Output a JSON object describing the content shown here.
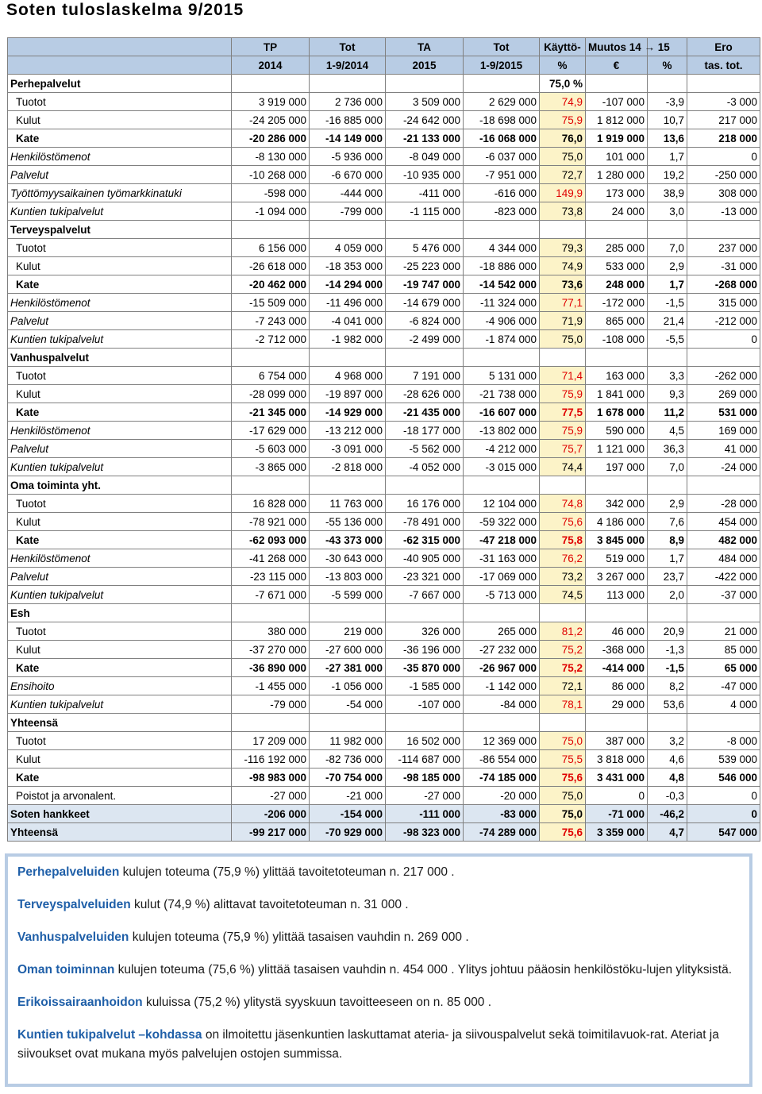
{
  "title": "Soten tuloslaskelma 9/2015",
  "header": {
    "row1": [
      "",
      "TP",
      "Tot",
      "TA",
      "Tot",
      "Käyttö-",
      "Muutos 14 → 15",
      "",
      "Ero"
    ],
    "row2": [
      "",
      "2014",
      "1-9/2014",
      "2015",
      "1-9/2015",
      "%",
      "€",
      "%",
      "tas. tot."
    ]
  },
  "rows": [
    {
      "label": "Perhepalvelut",
      "type": "section",
      "values": [
        "",
        "",
        "",
        "",
        "75,0 %",
        "",
        "",
        ""
      ]
    },
    {
      "label": "Tuotot",
      "type": "plain",
      "values": [
        "3 919 000",
        "2 736 000",
        "3 509 000",
        "2 629 000",
        "74,9",
        "-107 000",
        "-3,9",
        "-3 000"
      ],
      "red": true
    },
    {
      "label": "Kulut",
      "type": "plain",
      "values": [
        "-24 205 000",
        "-16 885 000",
        "-24 642 000",
        "-18 698 000",
        "75,9",
        "1 812 000",
        "10,7",
        "217 000"
      ],
      "red": true
    },
    {
      "label": "Kate",
      "type": "kate",
      "values": [
        "-20 286 000",
        "-14 149 000",
        "-21 133 000",
        "-16 068 000",
        "76,0",
        "1 919 000",
        "13,6",
        "218 000"
      ]
    },
    {
      "label": "Henkilöstömenot",
      "type": "italic",
      "values": [
        "-8 130 000",
        "-5 936 000",
        "-8 049 000",
        "-6 037 000",
        "75,0",
        "101 000",
        "1,7",
        "0"
      ]
    },
    {
      "label": "Palvelut",
      "type": "italic",
      "values": [
        "-10 268 000",
        "-6 670 000",
        "-10 935 000",
        "-7 951 000",
        "72,7",
        "1 280 000",
        "19,2",
        "-250 000"
      ]
    },
    {
      "label": "Työttömyysaikainen työmarkkinatuki",
      "type": "italic",
      "values": [
        "-598 000",
        "-444 000",
        "-411 000",
        "-616 000",
        "149,9",
        "173 000",
        "38,9",
        "308 000"
      ],
      "red": true
    },
    {
      "label": "Kuntien tukipalvelut",
      "type": "italic",
      "values": [
        "-1 094 000",
        "-799 000",
        "-1 115 000",
        "-823 000",
        "73,8",
        "24 000",
        "3,0",
        "-13 000"
      ]
    },
    {
      "label": "Terveyspalvelut",
      "type": "section",
      "values": [
        "",
        "",
        "",
        "",
        "",
        "",
        "",
        ""
      ]
    },
    {
      "label": "Tuotot",
      "type": "plain",
      "values": [
        "6 156 000",
        "4 059 000",
        "5 476 000",
        "4 344 000",
        "79,3",
        "285 000",
        "7,0",
        "237 000"
      ]
    },
    {
      "label": "Kulut",
      "type": "plain",
      "values": [
        "-26 618 000",
        "-18 353 000",
        "-25 223 000",
        "-18 886 000",
        "74,9",
        "533 000",
        "2,9",
        "-31 000"
      ]
    },
    {
      "label": "Kate",
      "type": "kate",
      "values": [
        "-20 462 000",
        "-14 294 000",
        "-19 747 000",
        "-14 542 000",
        "73,6",
        "248 000",
        "1,7",
        "-268 000"
      ]
    },
    {
      "label": "Henkilöstömenot",
      "type": "italic",
      "values": [
        "-15 509 000",
        "-11 496 000",
        "-14 679 000",
        "-11 324 000",
        "77,1",
        "-172 000",
        "-1,5",
        "315 000"
      ],
      "red": true
    },
    {
      "label": "Palvelut",
      "type": "italic",
      "values": [
        "-7 243 000",
        "-4 041 000",
        "-6 824 000",
        "-4 906 000",
        "71,9",
        "865 000",
        "21,4",
        "-212 000"
      ]
    },
    {
      "label": "Kuntien tukipalvelut",
      "type": "italic",
      "values": [
        "-2 712 000",
        "-1 982 000",
        "-2 499 000",
        "-1 874 000",
        "75,0",
        "-108 000",
        "-5,5",
        "0"
      ]
    },
    {
      "label": "Vanhuspalvelut",
      "type": "section",
      "values": [
        "",
        "",
        "",
        "",
        "",
        "",
        "",
        ""
      ]
    },
    {
      "label": "Tuotot",
      "type": "plain",
      "values": [
        "6 754 000",
        "4 968 000",
        "7 191 000",
        "5 131 000",
        "71,4",
        "163 000",
        "3,3",
        "-262 000"
      ],
      "red": true
    },
    {
      "label": "Kulut",
      "type": "plain",
      "values": [
        "-28 099 000",
        "-19 897 000",
        "-28 626 000",
        "-21 738 000",
        "75,9",
        "1 841 000",
        "9,3",
        "269 000"
      ],
      "red": true
    },
    {
      "label": "Kate",
      "type": "kate",
      "values": [
        "-21 345 000",
        "-14 929 000",
        "-21 435 000",
        "-16 607 000",
        "77,5",
        "1 678 000",
        "11,2",
        "531 000"
      ],
      "red": true
    },
    {
      "label": "Henkilöstömenot",
      "type": "italic",
      "values": [
        "-17 629 000",
        "-13 212 000",
        "-18 177 000",
        "-13 802 000",
        "75,9",
        "590 000",
        "4,5",
        "169 000"
      ],
      "red": true
    },
    {
      "label": "Palvelut",
      "type": "italic",
      "values": [
        "-5 603 000",
        "-3 091 000",
        "-5 562 000",
        "-4 212 000",
        "75,7",
        "1 121 000",
        "36,3",
        "41 000"
      ],
      "red": true
    },
    {
      "label": "Kuntien tukipalvelut",
      "type": "italic",
      "values": [
        "-3 865 000",
        "-2 818 000",
        "-4 052 000",
        "-3 015 000",
        "74,4",
        "197 000",
        "7,0",
        "-24 000"
      ]
    },
    {
      "label": "Oma toiminta yht.",
      "type": "section",
      "values": [
        "",
        "",
        "",
        "",
        "",
        "",
        "",
        ""
      ]
    },
    {
      "label": "Tuotot",
      "type": "plain",
      "values": [
        "16 828 000",
        "11 763 000",
        "16 176 000",
        "12 104 000",
        "74,8",
        "342 000",
        "2,9",
        "-28 000"
      ],
      "red": true
    },
    {
      "label": "Kulut",
      "type": "plain",
      "values": [
        "-78 921 000",
        "-55 136 000",
        "-78 491 000",
        "-59 322 000",
        "75,6",
        "4 186 000",
        "7,6",
        "454 000"
      ],
      "red": true
    },
    {
      "label": "Kate",
      "type": "kate",
      "values": [
        "-62 093 000",
        "-43 373 000",
        "-62 315 000",
        "-47 218 000",
        "75,8",
        "3 845 000",
        "8,9",
        "482 000"
      ],
      "red": true
    },
    {
      "label": "Henkilöstömenot",
      "type": "italic",
      "values": [
        "-41 268 000",
        "-30 643 000",
        "-40 905 000",
        "-31 163 000",
        "76,2",
        "519 000",
        "1,7",
        "484 000"
      ],
      "red": true
    },
    {
      "label": "Palvelut",
      "type": "italic",
      "values": [
        "-23 115 000",
        "-13 803 000",
        "-23 321 000",
        "-17 069 000",
        "73,2",
        "3 267 000",
        "23,7",
        "-422 000"
      ]
    },
    {
      "label": "Kuntien tukipalvelut",
      "type": "italic",
      "values": [
        "-7 671 000",
        "-5 599 000",
        "-7 667 000",
        "-5 713 000",
        "74,5",
        "113 000",
        "2,0",
        "-37 000"
      ]
    },
    {
      "label": "Esh",
      "type": "section",
      "values": [
        "",
        "",
        "",
        "",
        "",
        "",
        "",
        ""
      ]
    },
    {
      "label": "Tuotot",
      "type": "plain",
      "values": [
        "380 000",
        "219 000",
        "326 000",
        "265 000",
        "81,2",
        "46 000",
        "20,9",
        "21 000"
      ],
      "red": true
    },
    {
      "label": "Kulut",
      "type": "plain",
      "values": [
        "-37 270 000",
        "-27 600 000",
        "-36 196 000",
        "-27 232 000",
        "75,2",
        "-368 000",
        "-1,3",
        "85 000"
      ],
      "red": true
    },
    {
      "label": "Kate",
      "type": "kate",
      "values": [
        "-36 890 000",
        "-27 381 000",
        "-35 870 000",
        "-26 967 000",
        "75,2",
        "-414 000",
        "-1,5",
        "65 000"
      ],
      "red": true
    },
    {
      "label": "Ensihoito",
      "type": "italic",
      "values": [
        "-1 455 000",
        "-1 056 000",
        "-1 585 000",
        "-1 142 000",
        "72,1",
        "86 000",
        "8,2",
        "-47 000"
      ]
    },
    {
      "label": "Kuntien tukipalvelut",
      "type": "italic",
      "values": [
        "-79 000",
        "-54 000",
        "-107 000",
        "-84 000",
        "78,1",
        "29 000",
        "53,6",
        "4 000"
      ],
      "red": true
    },
    {
      "label": "Yhteensä",
      "type": "section",
      "values": [
        "",
        "",
        "",
        "",
        "",
        "",
        "",
        ""
      ]
    },
    {
      "label": "Tuotot",
      "type": "plain",
      "values": [
        "17 209 000",
        "11 982 000",
        "16 502 000",
        "12 369 000",
        "75,0",
        "387 000",
        "3,2",
        "-8 000"
      ],
      "red": true
    },
    {
      "label": "Kulut",
      "type": "plain",
      "values": [
        "-116 192 000",
        "-82 736 000",
        "-114 687 000",
        "-86 554 000",
        "75,5",
        "3 818 000",
        "4,6",
        "539 000"
      ],
      "red": true
    },
    {
      "label": "Kate",
      "type": "kate",
      "values": [
        "-98 983 000",
        "-70 754 000",
        "-98 185 000",
        "-74 185 000",
        "75,6",
        "3 431 000",
        "4,8",
        "546 000"
      ],
      "red": true
    },
    {
      "label": "Poistot ja arvonalent.",
      "type": "plain",
      "values": [
        "-27 000",
        "-21 000",
        "-27 000",
        "-20 000",
        "75,0",
        "0",
        "-0,3",
        "0"
      ]
    },
    {
      "label": "Soten hankkeet",
      "type": "total",
      "values": [
        "-206 000",
        "-154 000",
        "-111 000",
        "-83 000",
        "75,0",
        "-71 000",
        "-46,2",
        "0"
      ]
    },
    {
      "label": "Yhteensä",
      "type": "total",
      "values": [
        "-99 217 000",
        "-70 929 000",
        "-98 323 000",
        "-74 289 000",
        "75,6",
        "3 359 000",
        "4,7",
        "547 000"
      ],
      "red": true
    }
  ],
  "notes": [
    {
      "hl": "Perhepalveluiden",
      "text": " kulujen toteuma (75,9 %) ylittää tavoitetoteuman n. 217 000 ."
    },
    {
      "hl": "Terveyspalveluiden",
      "text": " kulut (74,9 %) alittavat tavoitetoteuman n. 31 000 ."
    },
    {
      "hl": "Vanhuspalveluiden",
      "text": " kulujen toteuma (75,9 %) ylittää tasaisen vauhdin n. 269 000 ."
    },
    {
      "hl": "Oman toiminnan",
      "text": " kulujen toteuma (75,6 %) ylittää tasaisen vauhdin n. 454 000 . Ylitys johtuu pääosin henkilöstöku-lujen ylityksistä."
    },
    {
      "hl": "Erikoissairaanhoidon",
      "text": " kuluissa (75,2 %) ylitystä syyskuun tavoitteeseen on n. 85 000 ."
    },
    {
      "hl": "Kuntien tukipalvelut –kohdassa",
      "text": " on ilmoitettu jäsenkuntien laskuttamat ateria- ja siivouspalvelut sekä toimitilavuok-rat. Ateriat ja siivoukset ovat mukana myös palvelujen ostojen summissa."
    }
  ]
}
